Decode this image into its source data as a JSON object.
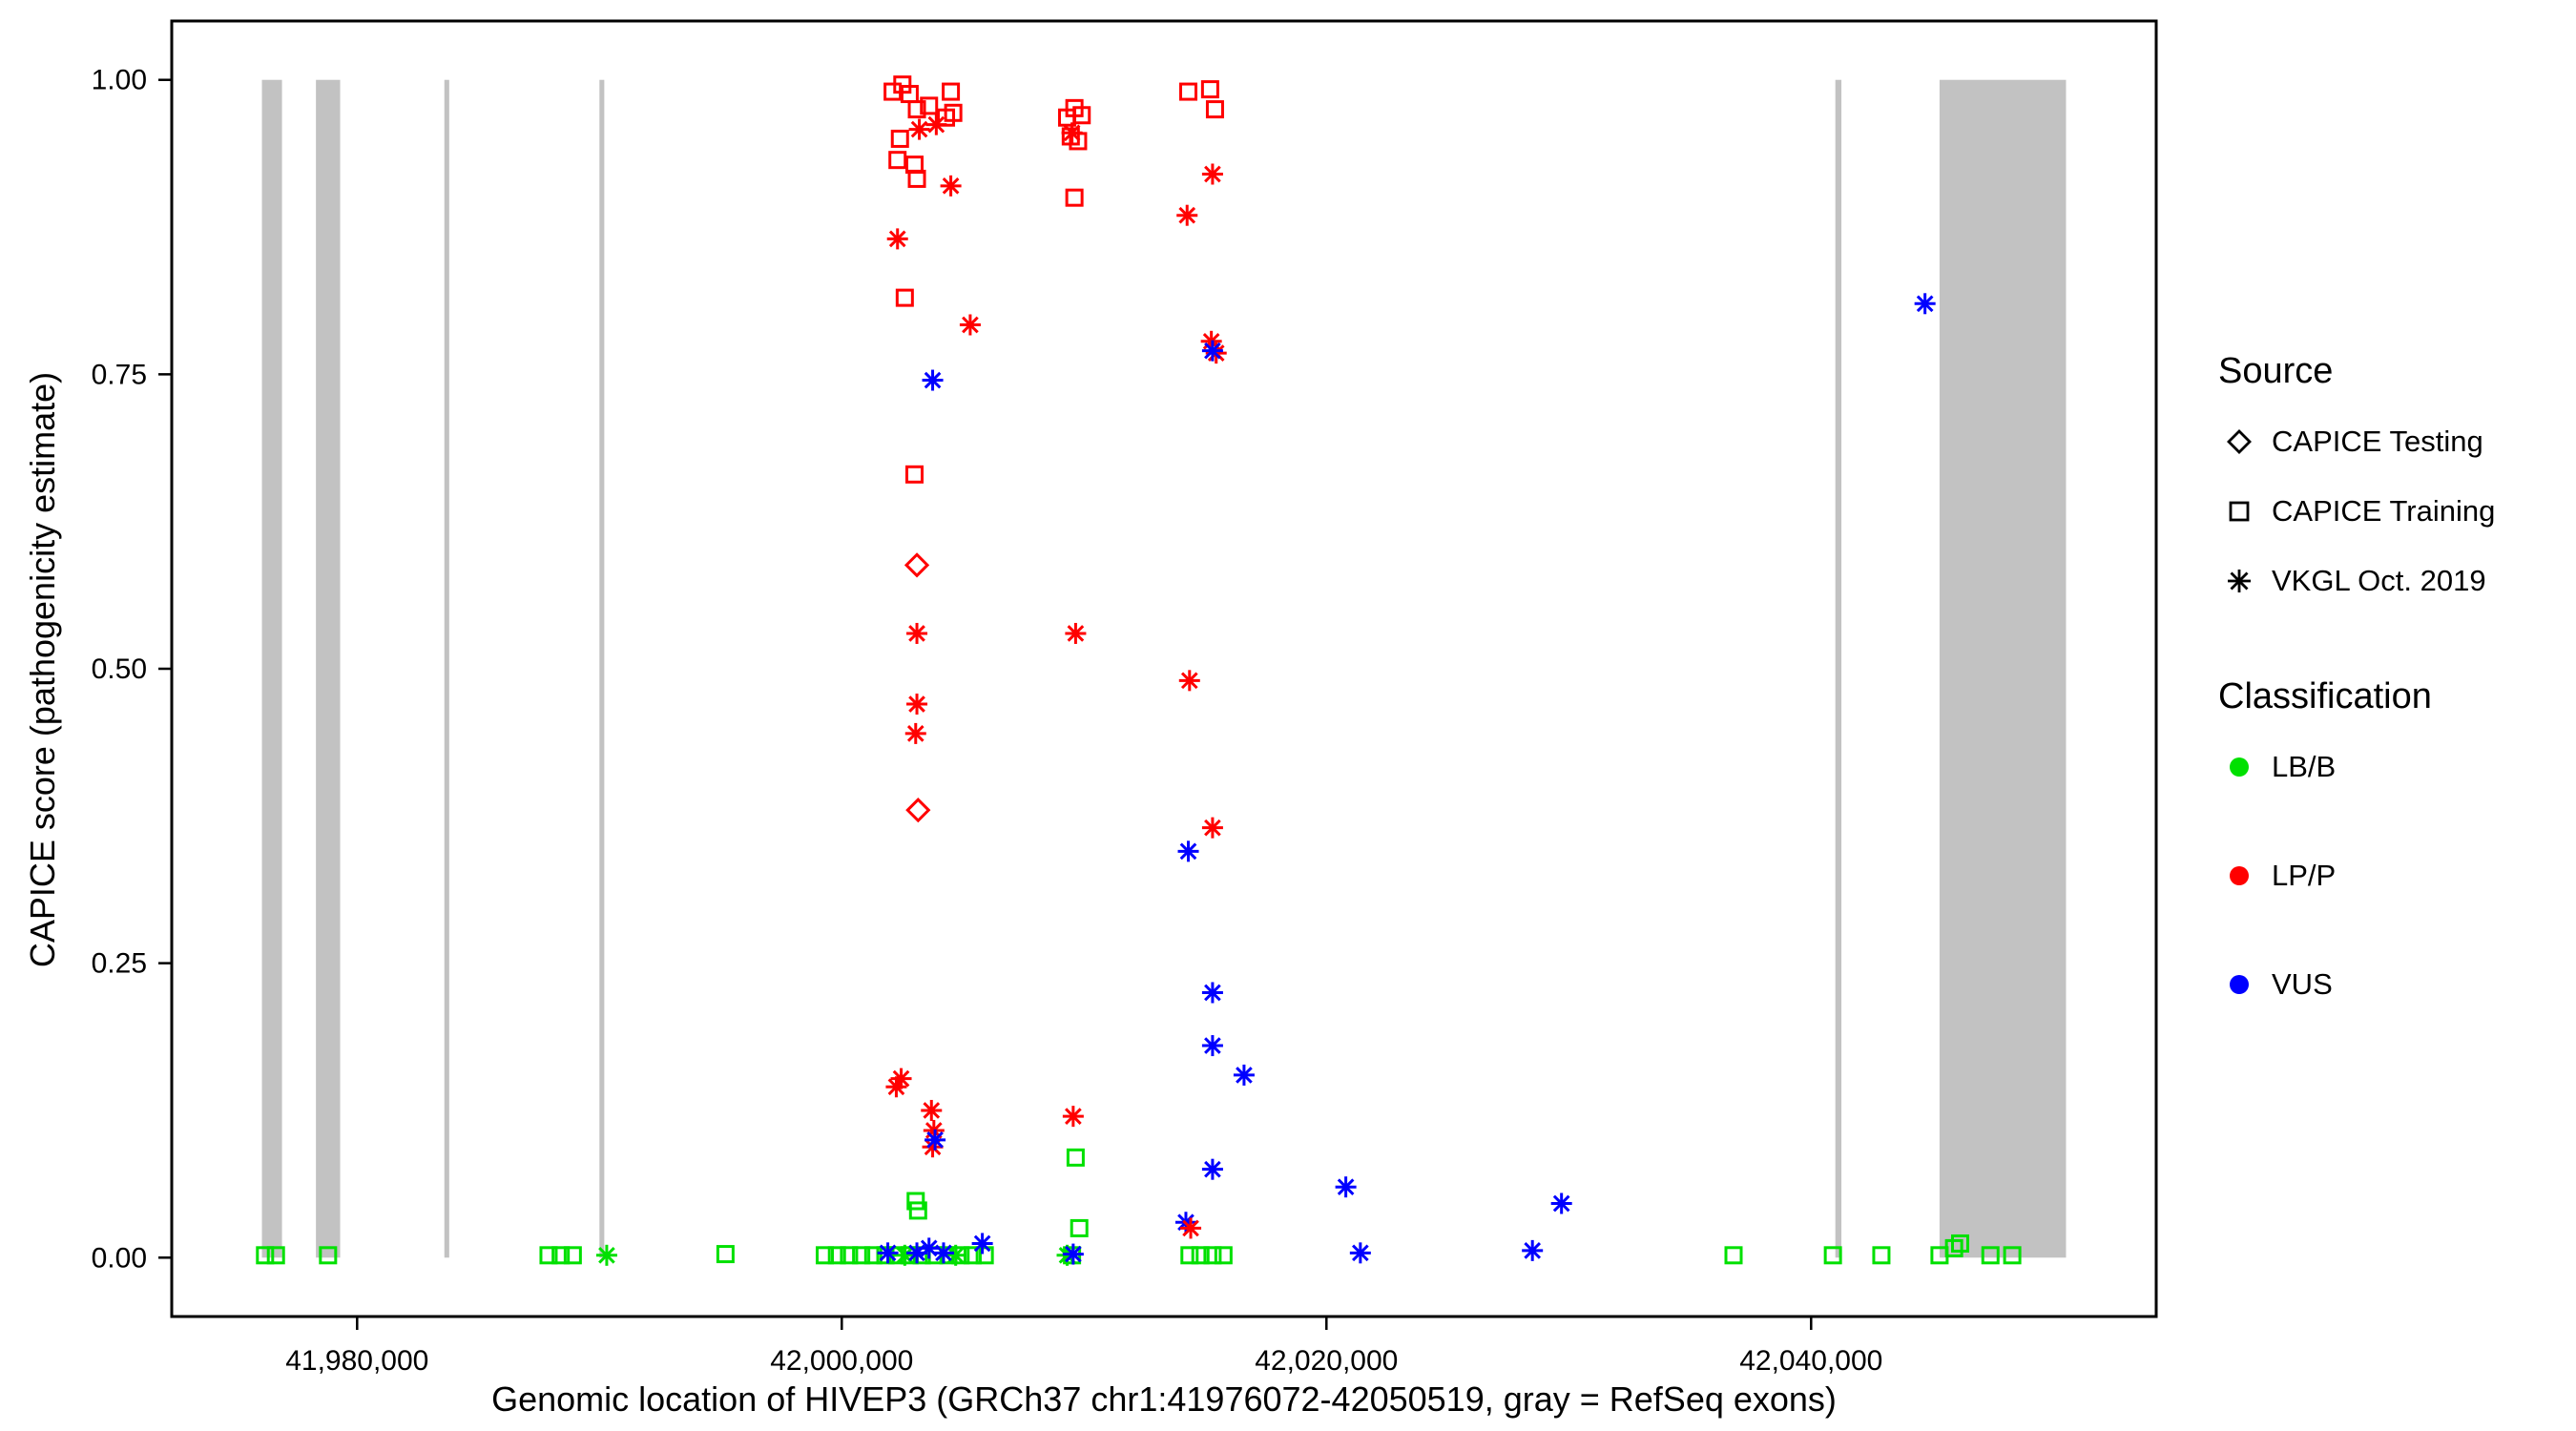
{
  "chart_data": {
    "type": "scatter",
    "title": "",
    "xlabel": "Genomic location of HIVEP3 (GRCh37 chr1:41976072-42050519, gray = RefSeq exons)",
    "ylabel": "CAPICE score (pathogenicity estimate)",
    "xlim": [
      41972350,
      42054241
    ],
    "ylim": [
      -0.05,
      1.05
    ],
    "grid": false,
    "x_ticks": [
      {
        "value": 41980000,
        "label": "41,980,000"
      },
      {
        "value": 42000000,
        "label": "42,000,000"
      },
      {
        "value": 42020000,
        "label": "42,020,000"
      },
      {
        "value": 42040000,
        "label": "42,040,000"
      }
    ],
    "y_ticks": [
      {
        "value": 0.0,
        "label": "0.00"
      },
      {
        "value": 0.25,
        "label": "0.25"
      },
      {
        "value": 0.5,
        "label": "0.50"
      },
      {
        "value": 0.75,
        "label": "0.75"
      },
      {
        "value": 1.0,
        "label": "1.00"
      }
    ],
    "exon_band_y": [
      0,
      1
    ],
    "exons": [
      [
        41976072,
        41976900
      ],
      [
        41978300,
        41979300
      ],
      [
        41983600,
        41983800
      ],
      [
        41990000,
        41990200
      ],
      [
        42041000,
        42041250
      ],
      [
        42045300,
        42050519
      ]
    ],
    "point_format": [
      "x",
      "y",
      "marker",
      "classification"
    ],
    "marker_codes": {
      "d": "CAPICE Testing",
      "s": "CAPICE Training",
      "a": "VKGL Oct. 2019"
    },
    "class_codes": {
      "b": "LB/B",
      "p": "LP/P",
      "v": "VUS"
    },
    "points": [
      [
        41976200,
        0.002,
        "s",
        "b"
      ],
      [
        41976650,
        0.002,
        "s",
        "b"
      ],
      [
        41978800,
        0.002,
        "s",
        "b"
      ],
      [
        41987900,
        0.002,
        "s",
        "b"
      ],
      [
        41988400,
        0.002,
        "s",
        "b"
      ],
      [
        41988900,
        0.002,
        "s",
        "b"
      ],
      [
        41990300,
        0.002,
        "a",
        "b"
      ],
      [
        41995200,
        0.003,
        "s",
        "b"
      ],
      [
        41999300,
        0.002,
        "s",
        "b"
      ],
      [
        41999800,
        0.002,
        "s",
        "b"
      ],
      [
        42000300,
        0.002,
        "s",
        "b"
      ],
      [
        42000800,
        0.002,
        "s",
        "b"
      ],
      [
        42001300,
        0.002,
        "s",
        "b"
      ],
      [
        42001800,
        0.002,
        "s",
        "b"
      ],
      [
        42002300,
        0.002,
        "s",
        "b"
      ],
      [
        42002800,
        0.002,
        "s",
        "b"
      ],
      [
        42003300,
        0.002,
        "s",
        "b"
      ],
      [
        42003800,
        0.002,
        "s",
        "b"
      ],
      [
        42004400,
        0.002,
        "s",
        "b"
      ],
      [
        42004900,
        0.002,
        "s",
        "b"
      ],
      [
        42005400,
        0.002,
        "s",
        "b"
      ],
      [
        42005900,
        0.002,
        "s",
        "b"
      ],
      [
        42002600,
        0.002,
        "a",
        "b"
      ],
      [
        42004700,
        0.002,
        "a",
        "b"
      ],
      [
        42001900,
        0.004,
        "a",
        "v"
      ],
      [
        42003100,
        0.004,
        "a",
        "v"
      ],
      [
        42003600,
        0.008,
        "a",
        "v"
      ],
      [
        42004200,
        0.004,
        "a",
        "v"
      ],
      [
        42005800,
        0.012,
        "a",
        "v"
      ],
      [
        42002100,
        0.99,
        "s",
        "p"
      ],
      [
        42002500,
        0.996,
        "s",
        "p"
      ],
      [
        42002800,
        0.988,
        "s",
        "p"
      ],
      [
        42003100,
        0.975,
        "s",
        "p"
      ],
      [
        42003600,
        0.978,
        "s",
        "p"
      ],
      [
        42004500,
        0.99,
        "s",
        "p"
      ],
      [
        42004600,
        0.972,
        "s",
        "p"
      ],
      [
        42004300,
        0.968,
        "s",
        "p"
      ],
      [
        42002400,
        0.95,
        "s",
        "p"
      ],
      [
        42002300,
        0.932,
        "s",
        "p"
      ],
      [
        42003000,
        0.928,
        "s",
        "p"
      ],
      [
        42003100,
        0.916,
        "s",
        "p"
      ],
      [
        42002600,
        0.815,
        "s",
        "p"
      ],
      [
        42003000,
        0.665,
        "s",
        "p"
      ],
      [
        42003200,
        0.958,
        "a",
        "p"
      ],
      [
        42003900,
        0.962,
        "a",
        "p"
      ],
      [
        42004500,
        0.91,
        "a",
        "p"
      ],
      [
        42005300,
        0.792,
        "a",
        "p"
      ],
      [
        42002300,
        0.865,
        "a",
        "p"
      ],
      [
        42003100,
        0.53,
        "a",
        "p"
      ],
      [
        42003100,
        0.47,
        "a",
        "p"
      ],
      [
        42003050,
        0.445,
        "a",
        "p"
      ],
      [
        42002250,
        0.145,
        "a",
        "p"
      ],
      [
        42002450,
        0.152,
        "a",
        "p"
      ],
      [
        42003700,
        0.125,
        "a",
        "p"
      ],
      [
        42003800,
        0.108,
        "a",
        "p"
      ],
      [
        42003750,
        0.094,
        "a",
        "p"
      ],
      [
        42003100,
        0.588,
        "d",
        "p"
      ],
      [
        42003150,
        0.38,
        "d",
        "p"
      ],
      [
        42003750,
        0.745,
        "a",
        "v"
      ],
      [
        42003850,
        0.1,
        "a",
        "v"
      ],
      [
        42003050,
        0.048,
        "s",
        "b"
      ],
      [
        42003150,
        0.04,
        "s",
        "b"
      ],
      [
        42009300,
        0.968,
        "s",
        "p"
      ],
      [
        42009600,
        0.976,
        "s",
        "p"
      ],
      [
        42009900,
        0.97,
        "s",
        "p"
      ],
      [
        42009450,
        0.952,
        "s",
        "p"
      ],
      [
        42009750,
        0.948,
        "s",
        "p"
      ],
      [
        42009500,
        0.955,
        "a",
        "p"
      ],
      [
        42009600,
        0.9,
        "s",
        "p"
      ],
      [
        42009650,
        0.53,
        "a",
        "p"
      ],
      [
        42009550,
        0.12,
        "a",
        "p"
      ],
      [
        42009650,
        0.085,
        "s",
        "b"
      ],
      [
        42009800,
        0.025,
        "s",
        "b"
      ],
      [
        42009500,
        0.002,
        "s",
        "b"
      ],
      [
        42009300,
        0.002,
        "a",
        "b"
      ],
      [
        42009550,
        0.003,
        "a",
        "v"
      ],
      [
        42014300,
        0.99,
        "s",
        "p"
      ],
      [
        42015200,
        0.992,
        "s",
        "p"
      ],
      [
        42015400,
        0.975,
        "s",
        "p"
      ],
      [
        42014250,
        0.885,
        "a",
        "p"
      ],
      [
        42015300,
        0.92,
        "a",
        "p"
      ],
      [
        42015250,
        0.778,
        "a",
        "p"
      ],
      [
        42015450,
        0.768,
        "a",
        "p"
      ],
      [
        42015300,
        0.77,
        "a",
        "v"
      ],
      [
        42014350,
        0.49,
        "a",
        "p"
      ],
      [
        42015300,
        0.365,
        "a",
        "p"
      ],
      [
        42014300,
        0.345,
        "a",
        "v"
      ],
      [
        42015300,
        0.225,
        "a",
        "v"
      ],
      [
        42015300,
        0.18,
        "a",
        "v"
      ],
      [
        42016600,
        0.155,
        "a",
        "v"
      ],
      [
        42015300,
        0.075,
        "a",
        "v"
      ],
      [
        42014200,
        0.03,
        "a",
        "v"
      ],
      [
        42014400,
        0.025,
        "a",
        "p"
      ],
      [
        42014350,
        0.002,
        "s",
        "b"
      ],
      [
        42014800,
        0.002,
        "s",
        "b"
      ],
      [
        42015300,
        0.002,
        "s",
        "b"
      ],
      [
        42015750,
        0.002,
        "s",
        "b"
      ],
      [
        42020800,
        0.06,
        "a",
        "v"
      ],
      [
        42021400,
        0.004,
        "a",
        "v"
      ],
      [
        42028500,
        0.006,
        "a",
        "v"
      ],
      [
        42029700,
        0.046,
        "a",
        "v"
      ],
      [
        42044700,
        0.81,
        "a",
        "v"
      ],
      [
        42036800,
        0.002,
        "s",
        "b"
      ],
      [
        42040900,
        0.002,
        "s",
        "b"
      ],
      [
        42042900,
        0.002,
        "s",
        "b"
      ],
      [
        42045300,
        0.002,
        "s",
        "b"
      ],
      [
        42045900,
        0.008,
        "s",
        "b"
      ],
      [
        42046150,
        0.012,
        "s",
        "b"
      ],
      [
        42047400,
        0.002,
        "s",
        "b"
      ],
      [
        42048300,
        0.002,
        "s",
        "b"
      ]
    ]
  },
  "colors": {
    "LB/B": "#00E000",
    "LP/P": "#FF0000",
    "VUS": "#0000FF",
    "exon_gray": "#C2C2C2",
    "axis": "#000000",
    "background": "#FFFFFF"
  },
  "legend": {
    "source": {
      "title": "Source",
      "items": [
        {
          "label": "CAPICE Testing",
          "marker": "diamond"
        },
        {
          "label": "CAPICE Training",
          "marker": "square"
        },
        {
          "label": "VKGL Oct. 2019",
          "marker": "asterisk"
        }
      ]
    },
    "classification": {
      "title": "Classification",
      "items": [
        {
          "label": "LB/B",
          "color_key": "LB/B"
        },
        {
          "label": "LP/P",
          "color_key": "LP/P"
        },
        {
          "label": "VUS",
          "color_key": "VUS"
        }
      ]
    }
  }
}
